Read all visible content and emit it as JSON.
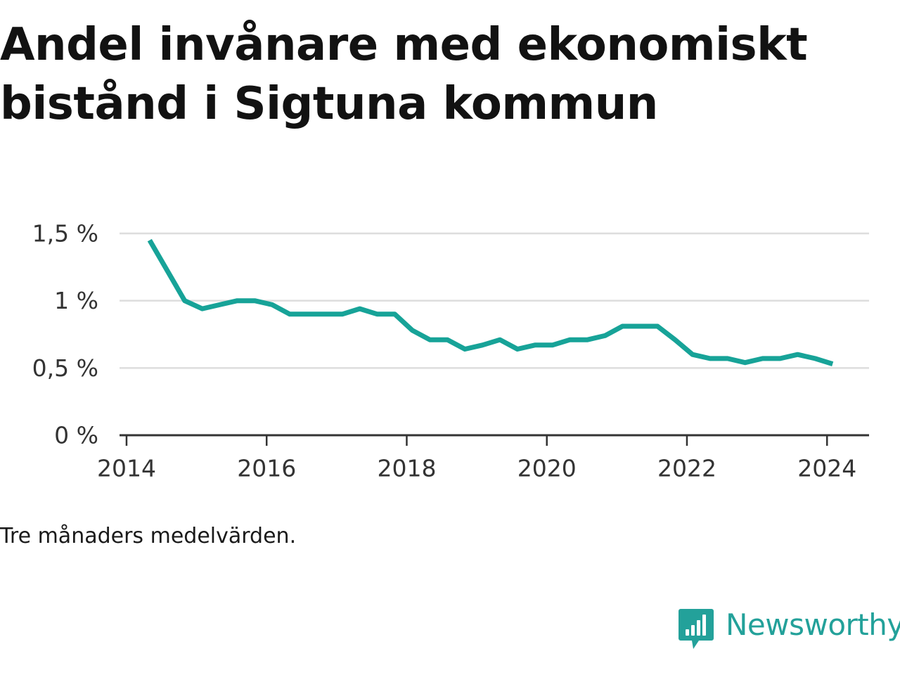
{
  "title": "Andel invånare med ekonomiskt bistånd i Sigtuna kommun",
  "caption": "Tre månaders medelvärden.",
  "brand": {
    "name": "Newsworthy",
    "icon": "newsworthy-logo-icon",
    "color": "#23a19a"
  },
  "colors": {
    "line": "#17a398",
    "grid": "#dddddd",
    "axis": "#333333"
  },
  "chart_data": {
    "type": "line",
    "title": "Andel invånare med ekonomiskt bistånd i Sigtuna kommun",
    "xlabel": "",
    "ylabel": "",
    "xlim": [
      2013.9,
      2024.6
    ],
    "ylim": [
      0,
      1.5
    ],
    "grid": "horizontal",
    "legend": "none",
    "x_ticks": [
      {
        "value": 2014,
        "label": "2014"
      },
      {
        "value": 2016,
        "label": "2016"
      },
      {
        "value": 2018,
        "label": "2018"
      },
      {
        "value": 2020,
        "label": "2020"
      },
      {
        "value": 2022,
        "label": "2022"
      },
      {
        "value": 2024,
        "label": "2024"
      }
    ],
    "y_ticks": [
      {
        "value": 0,
        "label": "0 %"
      },
      {
        "value": 0.5,
        "label": "0,5 %"
      },
      {
        "value": 1,
        "label": "1 %"
      },
      {
        "value": 1.5,
        "label": "1,5 %"
      }
    ],
    "series": [
      {
        "x": [
          2014.33,
          2014.83,
          2015.08,
          2015.33,
          2015.58,
          2015.83,
          2016.08,
          2016.33,
          2016.58,
          2016.83,
          2017.08,
          2017.33,
          2017.58,
          2017.83,
          2018.08,
          2018.33,
          2018.58,
          2018.83,
          2019.08,
          2019.33,
          2019.58,
          2019.83,
          2020.08,
          2020.33,
          2020.58,
          2020.83,
          2021.08,
          2021.33,
          2021.58,
          2021.83,
          2022.08,
          2022.33,
          2022.58,
          2022.83,
          2023.08,
          2023.33,
          2023.58,
          2023.83,
          2024.08
        ],
        "y": [
          1.45,
          1.0,
          0.94,
          0.97,
          1.0,
          1.0,
          0.97,
          0.9,
          0.9,
          0.9,
          0.9,
          0.94,
          0.9,
          0.9,
          0.78,
          0.71,
          0.71,
          0.64,
          0.67,
          0.71,
          0.64,
          0.67,
          0.67,
          0.71,
          0.71,
          0.74,
          0.81,
          0.81,
          0.81,
          0.71,
          0.6,
          0.57,
          0.57,
          0.54,
          0.57,
          0.57,
          0.6,
          0.57,
          0.53
        ]
      }
    ]
  }
}
